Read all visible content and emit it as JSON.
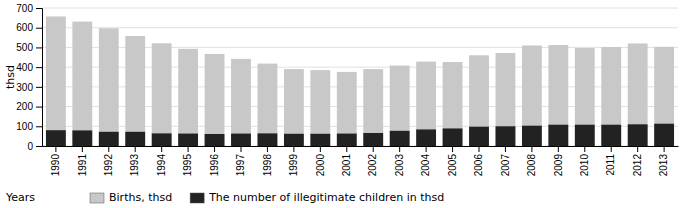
{
  "chart_data": {
    "type": "bar",
    "categories": [
      "1990",
      "1991",
      "1992",
      "1993",
      "1994",
      "1995",
      "1996",
      "1997",
      "1998",
      "1999",
      "2000",
      "2001",
      "2002",
      "2003",
      "2004",
      "2005",
      "2006",
      "2007",
      "2008",
      "2009",
      "2010",
      "2011",
      "2012",
      "2013"
    ],
    "series": [
      {
        "name": "Births, thsd",
        "color": "#c8c8c8",
        "values": [
          657,
          631,
          597,
          558,
          521,
          493,
          467,
          442,
          418,
          390,
          385,
          376,
          390,
          408,
          428,
          426,
          460,
          472,
          510,
          512,
          497,
          502,
          520,
          503
        ]
      },
      {
        "name": "The number of illegitimate children in thsd",
        "color": "#222222",
        "values": [
          80,
          79,
          72,
          72,
          64,
          63,
          61,
          63,
          64,
          62,
          62,
          63,
          66,
          77,
          84,
          89,
          98,
          100,
          103,
          108,
          108,
          108,
          110,
          113
        ]
      }
    ],
    "xlabel": "Years",
    "ylabel": "thsd",
    "ylim": [
      0,
      700
    ],
    "yticks": [
      0,
      100,
      200,
      300,
      400,
      500,
      600,
      700
    ],
    "grid": true,
    "legend": "bottom"
  }
}
